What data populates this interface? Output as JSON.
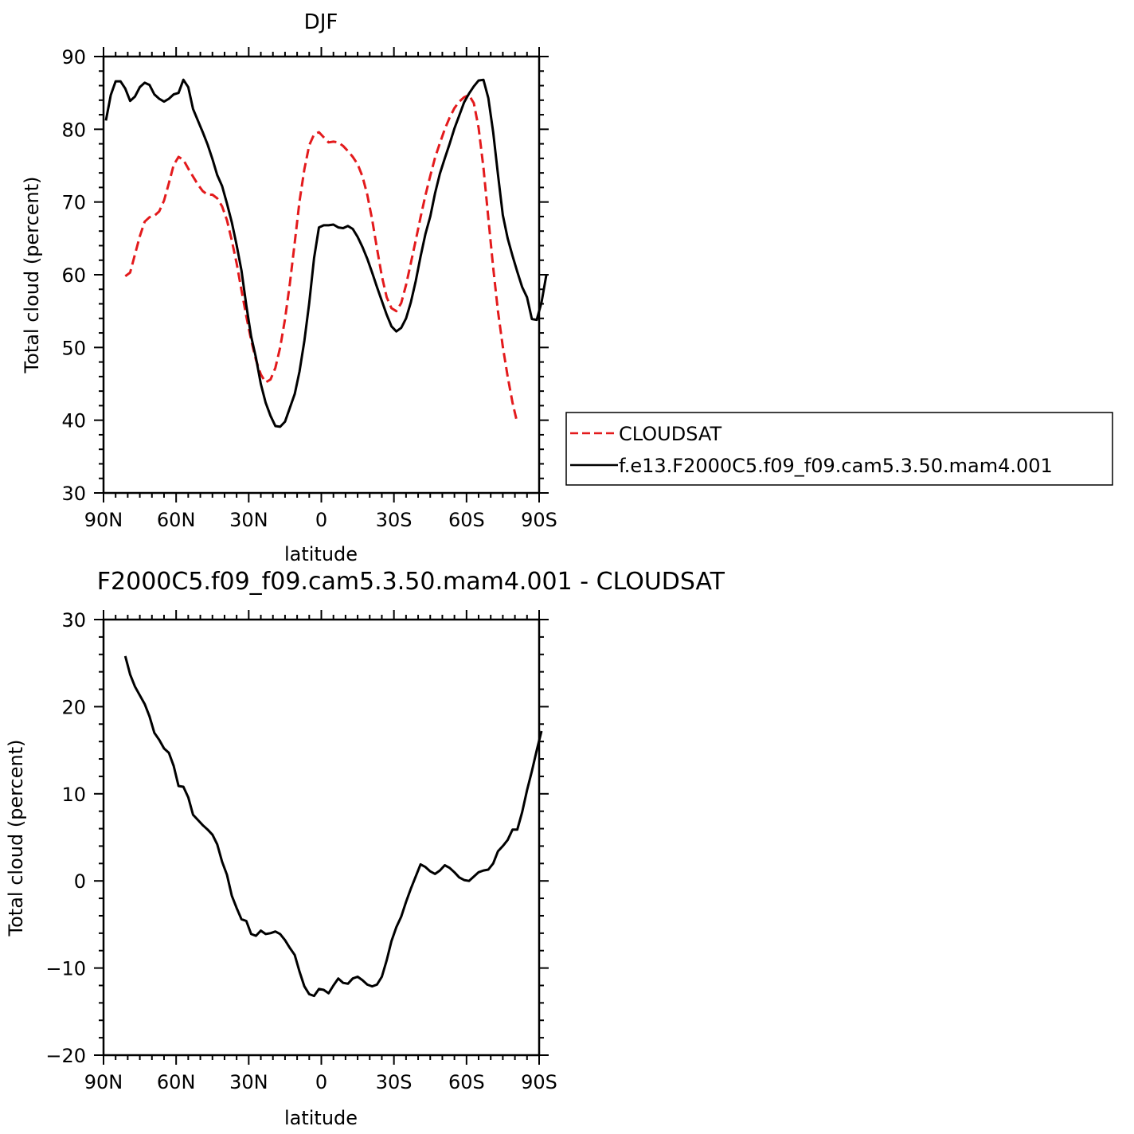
{
  "chart_data": [
    {
      "type": "line",
      "title": "DJF",
      "xlabel": "latitude",
      "ylabel": "Total cloud (percent)",
      "xlim": [
        90,
        -90
      ],
      "ylim": [
        30,
        90
      ],
      "xticks": [
        90,
        60,
        30,
        0,
        -30,
        -60,
        -90
      ],
      "xtick_labels": [
        "90N",
        "60N",
        "30N",
        "0",
        "30S",
        "60S",
        "90S"
      ],
      "yticks": [
        30,
        40,
        50,
        60,
        70,
        80,
        90
      ],
      "ytick_labels": [
        "30",
        "40",
        "50",
        "60",
        "70",
        "80",
        "90"
      ],
      "legend": {
        "position": "right",
        "entries": [
          "CLOUDSAT",
          "f.e13.F2000C5.f09_f09.cam5.3.50.mam4.001"
        ]
      },
      "series": [
        {
          "name": "CLOUDSAT",
          "color": "#e31a1c",
          "dash": "dashed",
          "points": [
            [
              81,
              59.8
            ],
            [
              79,
              60.3
            ],
            [
              77,
              62.8
            ],
            [
              75,
              65.3
            ],
            [
              73,
              67.3
            ],
            [
              71,
              67.9
            ],
            [
              69,
              68.1
            ],
            [
              67,
              68.7
            ],
            [
              65,
              70.2
            ],
            [
              63,
              72.6
            ],
            [
              61,
              75.1
            ],
            [
              59,
              76.2
            ],
            [
              57,
              75.8
            ],
            [
              55,
              74.6
            ],
            [
              53,
              73.5
            ],
            [
              51,
              72.4
            ],
            [
              49,
              71.5
            ],
            [
              47,
              71.0
            ],
            [
              45,
              71.0
            ],
            [
              43,
              70.5
            ],
            [
              41,
              69.4
            ],
            [
              39,
              67.5
            ],
            [
              37,
              64.7
            ],
            [
              35,
              61.6
            ],
            [
              33,
              57.9
            ],
            [
              31,
              54.3
            ],
            [
              29,
              51.0
            ],
            [
              27,
              48.3
            ],
            [
              25,
              46.3
            ],
            [
              23,
              45.2
            ],
            [
              21,
              45.6
            ],
            [
              19,
              47.2
            ],
            [
              17,
              50.0
            ],
            [
              15,
              53.9
            ],
            [
              13,
              58.8
            ],
            [
              11,
              64.4
            ],
            [
              9,
              70.1
            ],
            [
              7,
              74.5
            ],
            [
              5,
              77.8
            ],
            [
              3,
              79.3
            ],
            [
              1,
              79.6
            ],
            [
              -1,
              78.9
            ],
            [
              -3,
              78.2
            ],
            [
              -5,
              78.3
            ],
            [
              -7,
              78.2
            ],
            [
              -9,
              77.7
            ],
            [
              -11,
              77.0
            ],
            [
              -13,
              76.2
            ],
            [
              -15,
              75.2
            ],
            [
              -17,
              73.5
            ],
            [
              -19,
              71.0
            ],
            [
              -21,
              67.6
            ],
            [
              -23,
              63.6
            ],
            [
              -25,
              59.8
            ],
            [
              -27,
              56.9
            ],
            [
              -29,
              55.4
            ],
            [
              -31,
              55.0
            ],
            [
              -33,
              56.1
            ],
            [
              -35,
              58.6
            ],
            [
              -37,
              61.6
            ],
            [
              -39,
              64.7
            ],
            [
              -41,
              67.9
            ],
            [
              -43,
              70.9
            ],
            [
              -45,
              73.6
            ],
            [
              -47,
              76.1
            ],
            [
              -49,
              78.1
            ],
            [
              -51,
              80.0
            ],
            [
              -53,
              81.6
            ],
            [
              -55,
              82.9
            ],
            [
              -57,
              83.8
            ],
            [
              -59,
              84.4
            ],
            [
              -61,
              84.7
            ],
            [
              -63,
              83.6
            ],
            [
              -65,
              80.2
            ],
            [
              -67,
              74.7
            ],
            [
              -69,
              67.8
            ],
            [
              -71,
              61.0
            ],
            [
              -73,
              55.0
            ],
            [
              -75,
              50.1
            ],
            [
              -77,
              46.0
            ],
            [
              -79,
              42.4
            ],
            [
              -81,
              39.6
            ]
          ]
        },
        {
          "name": "f.e13.F2000C5.f09_f09.cam5.3.50.mam4.001",
          "color": "#000000",
          "dash": "solid",
          "points": [
            [
              89,
              81.2
            ],
            [
              87,
              84.7
            ],
            [
              85,
              86.6
            ],
            [
              83,
              86.6
            ],
            [
              81,
              85.6
            ],
            [
              79,
              83.9
            ],
            [
              77,
              84.5
            ],
            [
              75,
              85.8
            ],
            [
              73,
              86.4
            ],
            [
              71,
              86.1
            ],
            [
              69,
              84.8
            ],
            [
              67,
              84.2
            ],
            [
              65,
              83.8
            ],
            [
              63,
              84.2
            ],
            [
              61,
              84.8
            ],
            [
              59,
              85.0
            ],
            [
              57,
              86.8
            ],
            [
              55,
              85.8
            ],
            [
              53,
              82.8
            ],
            [
              51,
              81.2
            ],
            [
              49,
              79.6
            ],
            [
              47,
              77.9
            ],
            [
              45,
              75.9
            ],
            [
              43,
              73.7
            ],
            [
              41,
              72.2
            ],
            [
              39,
              69.8
            ],
            [
              37,
              67.2
            ],
            [
              35,
              64.1
            ],
            [
              33,
              60.6
            ],
            [
              31,
              55.8
            ],
            [
              29,
              51.5
            ],
            [
              27,
              48.6
            ],
            [
              25,
              45.0
            ],
            [
              23,
              42.4
            ],
            [
              21,
              40.6
            ],
            [
              19,
              39.2
            ],
            [
              17,
              39.1
            ],
            [
              15,
              39.8
            ],
            [
              13,
              41.7
            ],
            [
              11,
              43.6
            ],
            [
              9,
              46.7
            ],
            [
              7,
              50.9
            ],
            [
              5,
              56.1
            ],
            [
              3,
              62.3
            ],
            [
              1,
              66.5
            ],
            [
              -1,
              66.8
            ],
            [
              -3,
              66.8
            ],
            [
              -5,
              66.9
            ],
            [
              -7,
              66.5
            ],
            [
              -9,
              66.4
            ],
            [
              -11,
              66.7
            ],
            [
              -13,
              66.3
            ],
            [
              -15,
              65.2
            ],
            [
              -17,
              63.8
            ],
            [
              -19,
              62.2
            ],
            [
              -21,
              60.3
            ],
            [
              -23,
              58.3
            ],
            [
              -25,
              56.4
            ],
            [
              -27,
              54.5
            ],
            [
              -29,
              52.9
            ],
            [
              -31,
              52.2
            ],
            [
              -33,
              52.7
            ],
            [
              -35,
              54.0
            ],
            [
              -37,
              56.2
            ],
            [
              -39,
              59.1
            ],
            [
              -41,
              62.5
            ],
            [
              -43,
              65.6
            ],
            [
              -45,
              68.0
            ],
            [
              -47,
              71.2
            ],
            [
              -49,
              73.9
            ],
            [
              -51,
              76.0
            ],
            [
              -53,
              78.0
            ],
            [
              -55,
              80.1
            ],
            [
              -57,
              81.9
            ],
            [
              -59,
              83.7
            ],
            [
              -61,
              84.9
            ],
            [
              -63,
              85.9
            ],
            [
              -65,
              86.7
            ],
            [
              -67,
              86.8
            ],
            [
              -69,
              84.3
            ],
            [
              -71,
              79.6
            ],
            [
              -73,
              73.8
            ],
            [
              -75,
              68.2
            ],
            [
              -77,
              65.0
            ],
            [
              -79,
              62.6
            ],
            [
              -81,
              60.4
            ],
            [
              -83,
              58.3
            ],
            [
              -85,
              56.9
            ],
            [
              -87,
              53.9
            ],
            [
              -89,
              53.8
            ],
            [
              -91,
              56.2
            ],
            [
              -93,
              60.0
            ]
          ]
        }
      ]
    },
    {
      "type": "line",
      "title": "F2000C5.f09_f09.cam5.3.50.mam4.001  -  CLOUDSAT",
      "xlabel": "latitude",
      "ylabel": "Total cloud (percent)",
      "xlim": [
        90,
        -90
      ],
      "ylim": [
        -20,
        30
      ],
      "xticks": [
        90,
        60,
        30,
        0,
        -30,
        -60,
        -90
      ],
      "xtick_labels": [
        "90N",
        "60N",
        "30N",
        "0",
        "30S",
        "60S",
        "90S"
      ],
      "yticks": [
        -20,
        -10,
        0,
        10,
        20,
        30
      ],
      "ytick_labels": [
        "−20",
        "−10",
        "0",
        "10",
        "20",
        "30"
      ],
      "series": [
        {
          "color": "#000000",
          "dash": "solid",
          "points": [
            [
              81,
              25.8
            ],
            [
              79,
              23.7
            ],
            [
              77,
              22.3
            ],
            [
              75,
              21.3
            ],
            [
              73,
              20.3
            ],
            [
              71,
              18.9
            ],
            [
              69,
              17.0
            ],
            [
              67,
              16.2
            ],
            [
              65,
              15.2
            ],
            [
              63,
              14.7
            ],
            [
              61,
              13.2
            ],
            [
              59,
              10.9
            ],
            [
              57,
              10.8
            ],
            [
              55,
              9.6
            ],
            [
              53,
              7.6
            ],
            [
              51,
              7.0
            ],
            [
              49,
              6.4
            ],
            [
              47,
              5.9
            ],
            [
              45,
              5.3
            ],
            [
              43,
              4.2
            ],
            [
              41,
              2.2
            ],
            [
              39,
              0.7
            ],
            [
              37,
              -1.7
            ],
            [
              35,
              -3.1
            ],
            [
              33,
              -4.4
            ],
            [
              31,
              -4.6
            ],
            [
              29,
              -6.1
            ],
            [
              27,
              -6.3
            ],
            [
              25,
              -5.7
            ],
            [
              23,
              -6.1
            ],
            [
              21,
              -6.0
            ],
            [
              19,
              -5.8
            ],
            [
              17,
              -6.1
            ],
            [
              15,
              -6.8
            ],
            [
              13,
              -7.7
            ],
            [
              11,
              -8.5
            ],
            [
              9,
              -10.4
            ],
            [
              7,
              -12.1
            ],
            [
              5,
              -13.0
            ],
            [
              3,
              -13.2
            ],
            [
              1,
              -12.4
            ],
            [
              -1,
              -12.5
            ],
            [
              -3,
              -12.9
            ],
            [
              -5,
              -12.0
            ],
            [
              -7,
              -11.2
            ],
            [
              -9,
              -11.7
            ],
            [
              -11,
              -11.8
            ],
            [
              -13,
              -11.2
            ],
            [
              -15,
              -11.0
            ],
            [
              -17,
              -11.4
            ],
            [
              -19,
              -11.9
            ],
            [
              -21,
              -12.1
            ],
            [
              -23,
              -11.9
            ],
            [
              -25,
              -11.0
            ],
            [
              -27,
              -9.1
            ],
            [
              -29,
              -6.9
            ],
            [
              -31,
              -5.3
            ],
            [
              -33,
              -4.1
            ],
            [
              -35,
              -2.4
            ],
            [
              -37,
              -0.9
            ],
            [
              -39,
              0.5
            ],
            [
              -41,
              1.9
            ],
            [
              -43,
              1.6
            ],
            [
              -45,
              1.1
            ],
            [
              -47,
              0.8
            ],
            [
              -49,
              1.2
            ],
            [
              -51,
              1.8
            ],
            [
              -53,
              1.5
            ],
            [
              -55,
              1.0
            ],
            [
              -57,
              0.4
            ],
            [
              -59,
              0.1
            ],
            [
              -61,
              0.0
            ],
            [
              -63,
              0.5
            ],
            [
              -65,
              1.0
            ],
            [
              -67,
              1.2
            ],
            [
              -69,
              1.3
            ],
            [
              -71,
              2.0
            ],
            [
              -73,
              3.4
            ],
            [
              -75,
              4.0
            ],
            [
              -77,
              4.7
            ],
            [
              -79,
              5.9
            ],
            [
              -81,
              5.9
            ],
            [
              -83,
              7.9
            ],
            [
              -85,
              10.4
            ],
            [
              -87,
              12.6
            ],
            [
              -89,
              15.0
            ],
            [
              -91,
              17.2
            ]
          ]
        }
      ]
    }
  ]
}
